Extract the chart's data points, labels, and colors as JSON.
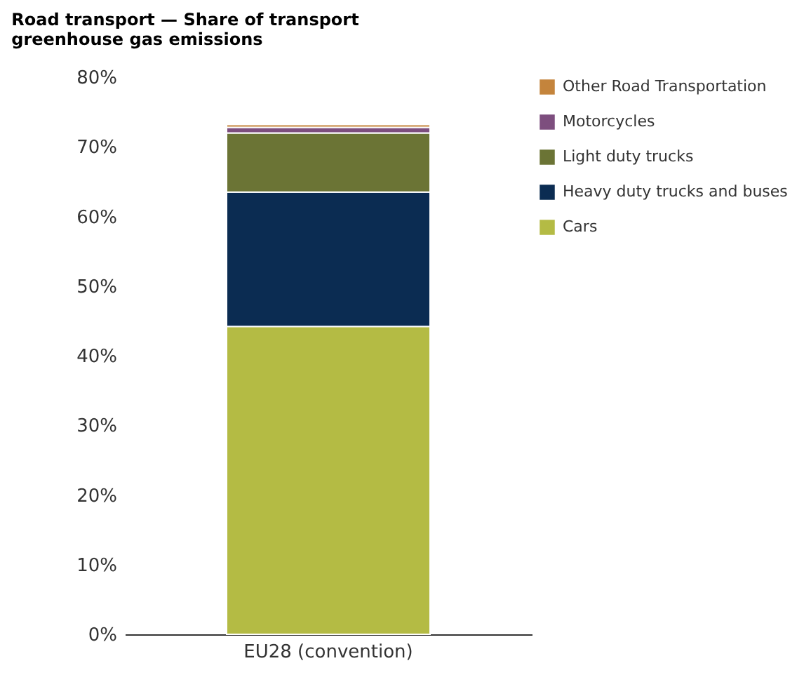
{
  "chart_data": {
    "type": "bar",
    "title": "Road transport — Share of transport greenhouse gas emissions",
    "categories": [
      "EU28 (convention)"
    ],
    "stacked": true,
    "series": [
      {
        "name": "Cars",
        "color": "#b4bb44",
        "values": [
          44.2
        ]
      },
      {
        "name": "Heavy duty trucks and buses",
        "color": "#0b2c52",
        "values": [
          19.3
        ]
      },
      {
        "name": "Light duty trucks",
        "color": "#6b7435",
        "values": [
          8.5
        ]
      },
      {
        "name": "Motorcycles",
        "color": "#7d4e7e",
        "values": [
          0.8
        ]
      },
      {
        "name": "Other Road Transportation",
        "color": "#c4843c",
        "values": [
          0.4
        ]
      }
    ],
    "ylim": [
      0,
      80
    ],
    "yticks": [
      {
        "value": 0,
        "label": "0%"
      },
      {
        "value": 10,
        "label": "10%"
      },
      {
        "value": 20,
        "label": "20%"
      },
      {
        "value": 30,
        "label": "30%"
      },
      {
        "value": 40,
        "label": "40%"
      },
      {
        "value": 50,
        "label": "50%"
      },
      {
        "value": 60,
        "label": "60%"
      },
      {
        "value": 70,
        "label": "70%"
      },
      {
        "value": 80,
        "label": "80%"
      }
    ],
    "grid": false,
    "legend": "top right"
  }
}
